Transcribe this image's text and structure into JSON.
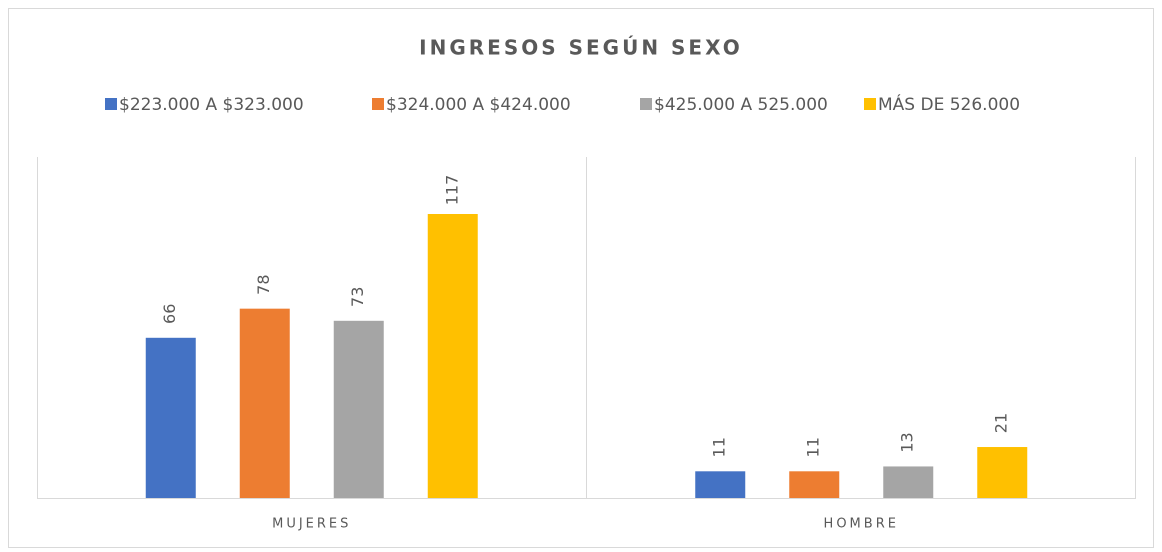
{
  "chart_data": {
    "type": "bar",
    "title": "INGRESOS SEGÚN SEXO",
    "categories": [
      "MUJERES",
      "HOMBRE"
    ],
    "series": [
      {
        "name": "$223.000 A $323.000",
        "color": "#4472c4",
        "values": [
          66,
          11
        ]
      },
      {
        "name": "$324.000 A $424.000",
        "color": "#ed7d31",
        "values": [
          78,
          11
        ]
      },
      {
        "name": "$425.000 A 525.000",
        "color": "#a5a5a5",
        "values": [
          73,
          13
        ]
      },
      {
        "name": "MÁS DE 526.000",
        "color": "#ffc000",
        "values": [
          117,
          21
        ]
      }
    ],
    "legend": "top"
  }
}
